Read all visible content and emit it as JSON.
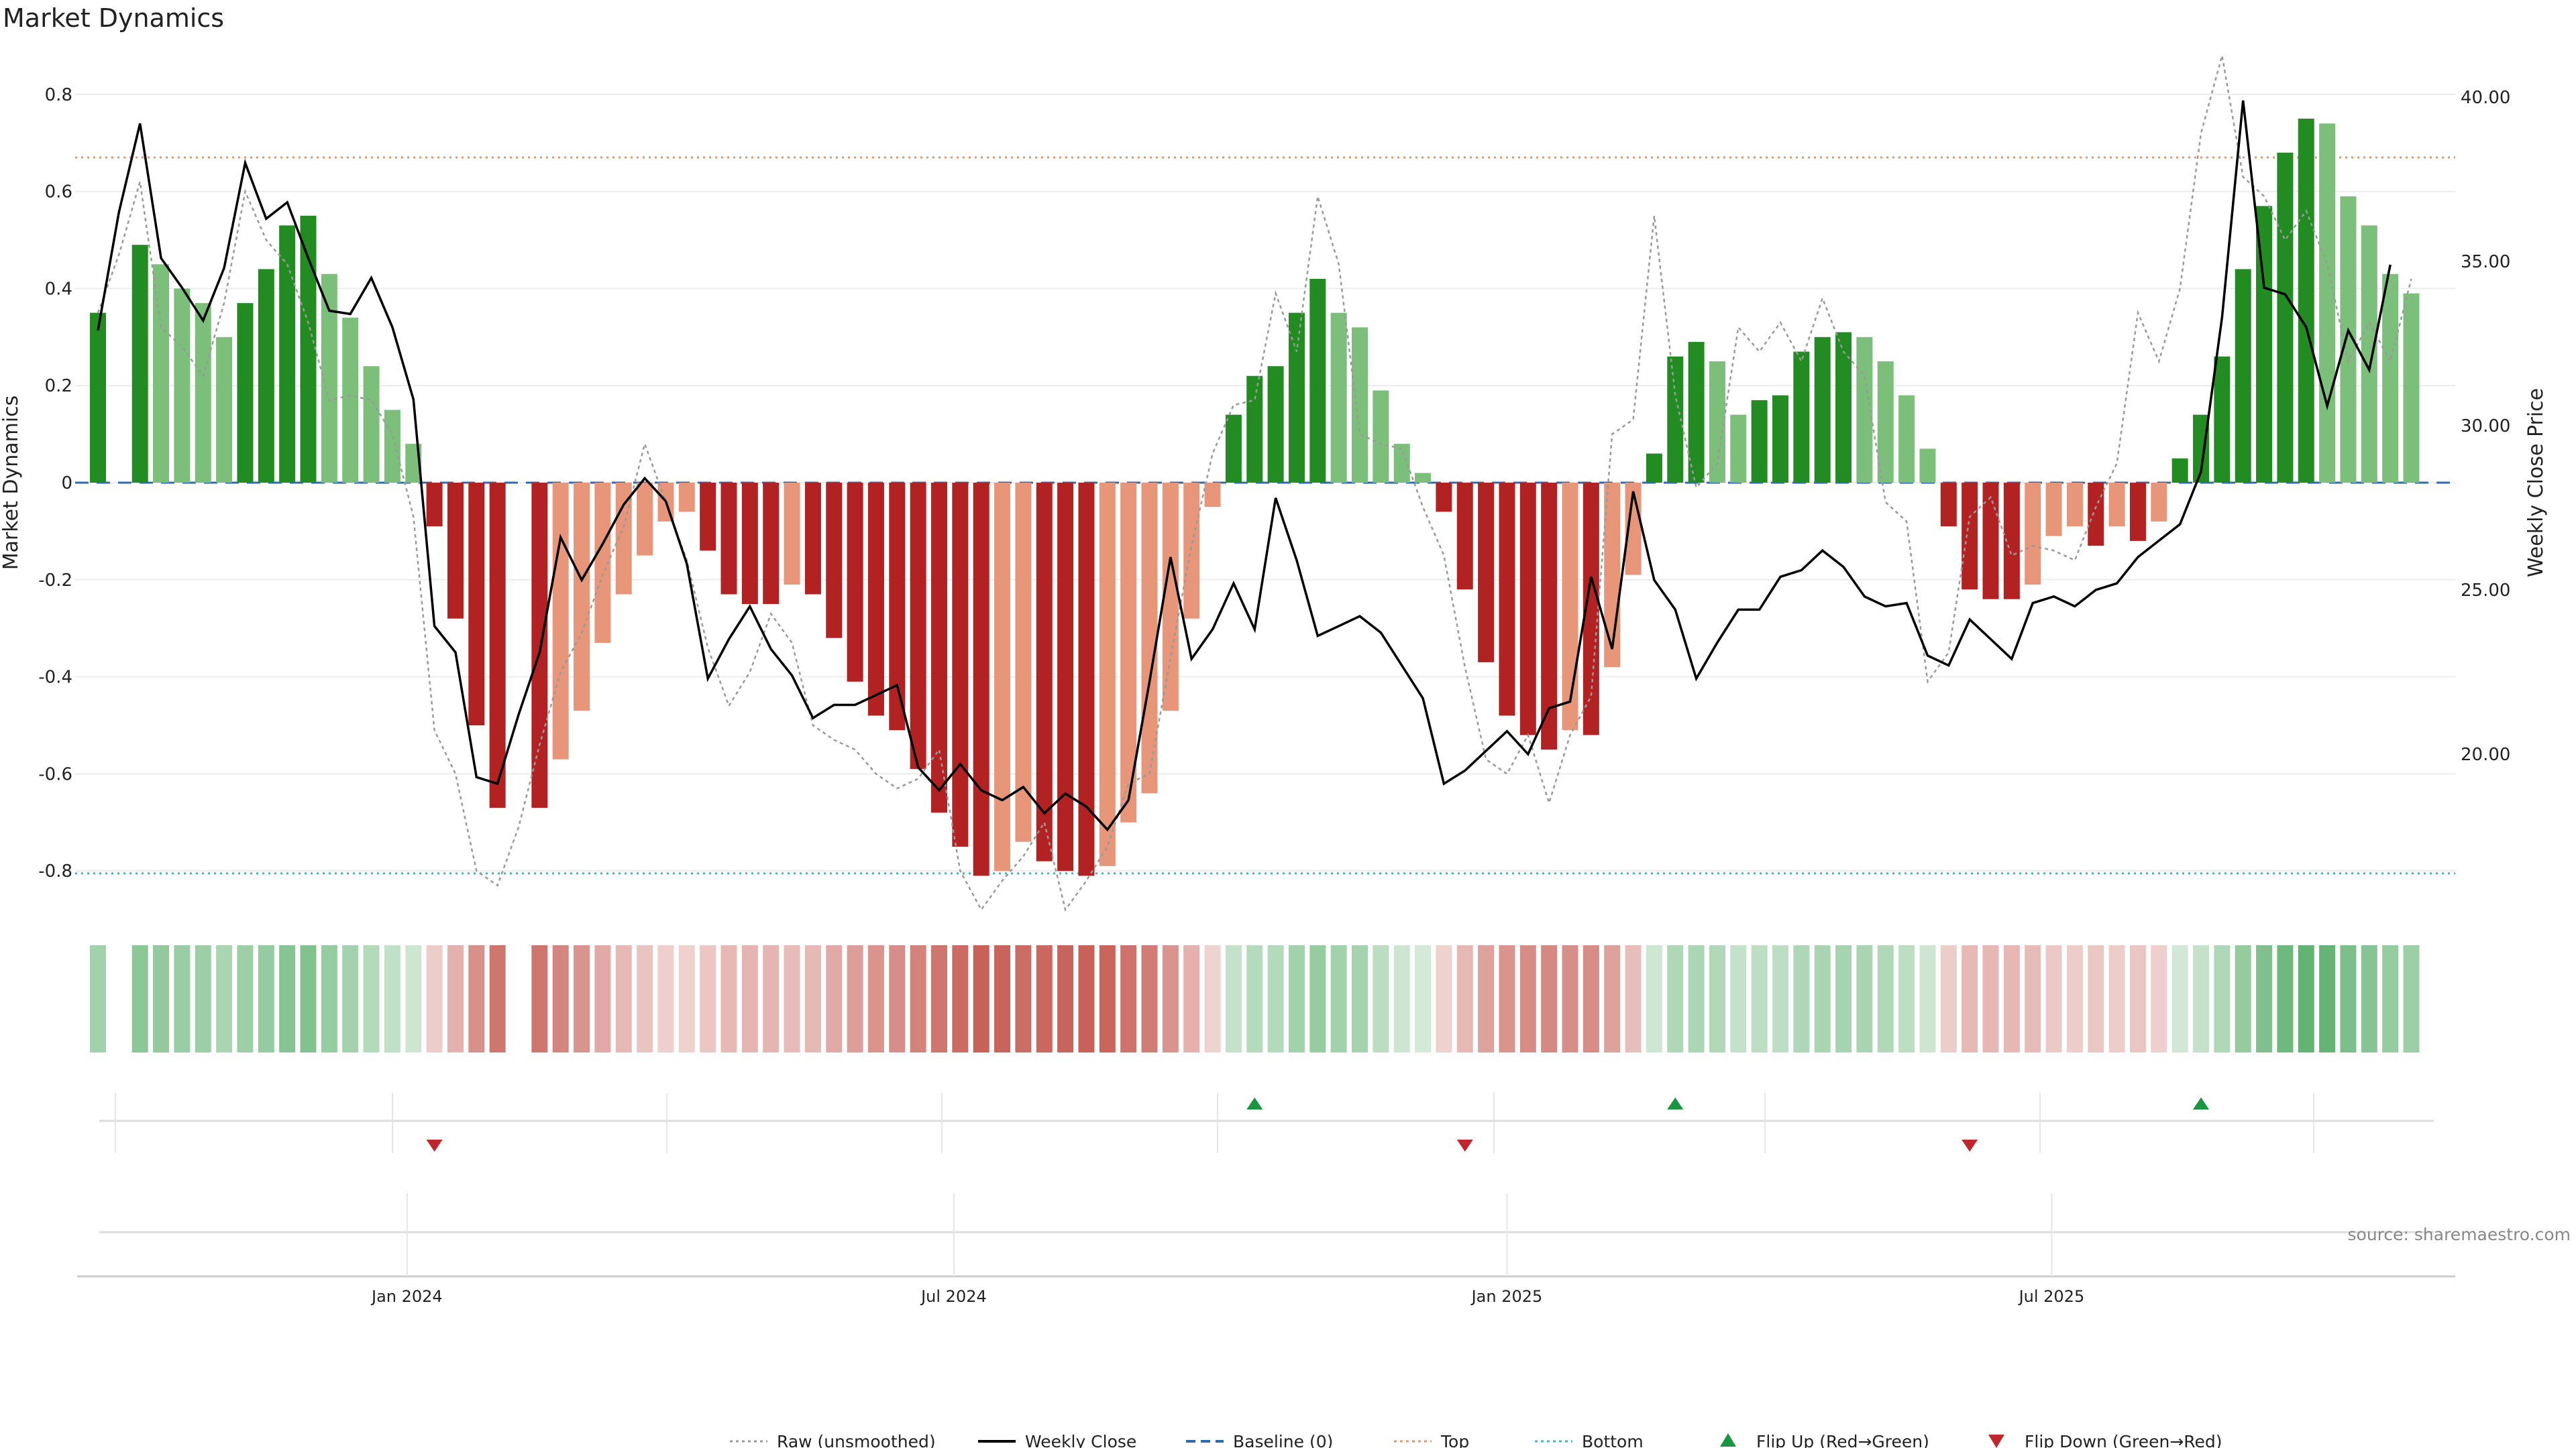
{
  "chart_data": {
    "type": "bar",
    "title": "Market Dynamics",
    "ylabel_left": "Market Dynamics",
    "ylabel_right": "Weekly Close Price",
    "ylim_left": [
      -0.88,
      0.9
    ],
    "ylim_right": [
      15.6,
      41.0
    ],
    "yticks_left": [
      "0.8",
      "0.6",
      "0.4",
      "0.2",
      "0",
      "-0.2",
      "-0.4",
      "-0.6",
      "-0.8"
    ],
    "yticks_right": [
      "40.00",
      "35.00",
      "30.00",
      "25.00",
      "20.00"
    ],
    "xticks": [
      "Jan 2024",
      "Jul 2024",
      "Jan 2025",
      "Jul 2025"
    ],
    "xtick_weeks": [
      14.7,
      40.7,
      67.0,
      92.9
    ],
    "top_threshold": 0.67,
    "bottom_threshold": -0.805,
    "baseline": 0,
    "n_weeks": 113,
    "dynamics": [
      0.35,
      null,
      0.49,
      0.45,
      0.4,
      0.37,
      0.3,
      0.37,
      0.44,
      0.53,
      0.55,
      0.43,
      0.34,
      0.24,
      0.15,
      0.08,
      -0.09,
      -0.28,
      -0.5,
      -0.67,
      null,
      -0.67,
      -0.57,
      -0.47,
      -0.33,
      -0.23,
      -0.15,
      -0.08,
      -0.06,
      -0.14,
      -0.23,
      -0.25,
      -0.25,
      -0.21,
      -0.23,
      -0.32,
      -0.41,
      -0.48,
      -0.51,
      -0.59,
      -0.68,
      -0.75,
      -0.81,
      -0.8,
      -0.74,
      -0.78,
      -0.8,
      -0.81,
      -0.79,
      -0.7,
      -0.64,
      -0.47,
      -0.28,
      -0.05,
      0.14,
      0.22,
      0.24,
      0.35,
      0.42,
      0.35,
      0.32,
      0.19,
      0.08,
      0.02,
      -0.06,
      -0.22,
      -0.37,
      -0.48,
      -0.52,
      -0.55,
      -0.51,
      -0.52,
      -0.38,
      -0.19,
      0.06,
      0.26,
      0.29,
      0.25,
      0.14,
      0.17,
      0.18,
      0.27,
      0.3,
      0.31,
      0.3,
      0.25,
      0.18,
      0.07,
      -0.09,
      -0.22,
      -0.24,
      -0.24,
      -0.21,
      -0.11,
      -0.09,
      -0.13,
      -0.09,
      -0.12,
      -0.08,
      0.05,
      0.14,
      0.26,
      0.44,
      0.57,
      0.68,
      0.75,
      0.74,
      0.59,
      0.53,
      0.43,
      0.39,
      null,
      null
    ],
    "raw": [
      0.35,
      0.47,
      0.62,
      0.32,
      0.28,
      0.22,
      0.37,
      0.6,
      0.5,
      0.45,
      0.33,
      0.17,
      0.18,
      0.17,
      0.1,
      -0.07,
      -0.51,
      -0.6,
      -0.8,
      -0.83,
      -0.71,
      -0.54,
      -0.39,
      -0.31,
      -0.19,
      -0.09,
      0.08,
      -0.04,
      -0.16,
      -0.34,
      -0.46,
      -0.39,
      -0.27,
      -0.33,
      -0.5,
      -0.53,
      -0.55,
      -0.6,
      -0.63,
      -0.61,
      -0.55,
      -0.8,
      -0.88,
      -0.82,
      -0.77,
      -0.7,
      -0.88,
      -0.82,
      -0.75,
      -0.62,
      -0.6,
      -0.36,
      -0.13,
      0.06,
      0.16,
      0.17,
      0.39,
      0.27,
      0.59,
      0.45,
      0.1,
      0.08,
      0.07,
      -0.05,
      -0.15,
      -0.38,
      -0.57,
      -0.6,
      -0.52,
      -0.66,
      -0.52,
      -0.44,
      0.1,
      0.13,
      0.55,
      0.18,
      -0.01,
      0.04,
      0.32,
      0.27,
      0.33,
      0.25,
      0.38,
      0.27,
      0.22,
      -0.04,
      -0.08,
      -0.41,
      -0.35,
      -0.07,
      -0.03,
      -0.15,
      -0.13,
      -0.14,
      -0.16,
      -0.05,
      0.04,
      0.35,
      0.25,
      0.4,
      0.72,
      0.88,
      0.63,
      0.59,
      0.5,
      0.56,
      0.45,
      0.25,
      0.33,
      0.25,
      0.42,
      null,
      null
    ],
    "close": [
      32.9,
      36.5,
      39.2,
      35.1,
      34.2,
      33.2,
      34.8,
      38.0,
      36.3,
      36.8,
      35.1,
      33.5,
      33.4,
      34.5,
      33.0,
      30.8,
      23.9,
      23.1,
      19.3,
      19.1,
      21.2,
      23.1,
      26.6,
      25.3,
      26.4,
      27.6,
      28.4,
      27.7,
      25.8,
      22.3,
      23.5,
      24.5,
      23.2,
      22.4,
      21.1,
      21.5,
      21.5,
      21.8,
      22.1,
      19.6,
      18.9,
      19.7,
      18.9,
      18.6,
      19.0,
      18.2,
      18.8,
      18.4,
      17.7,
      18.6,
      22.2,
      26.0,
      22.9,
      23.8,
      25.2,
      23.8,
      27.8,
      25.9,
      23.6,
      23.9,
      24.2,
      23.7,
      22.7,
      21.7,
      19.1,
      19.5,
      20.1,
      20.7,
      20.0,
      21.4,
      21.6,
      25.4,
      23.2,
      28.0,
      25.3,
      24.4,
      22.3,
      23.4,
      24.4,
      24.4,
      25.4,
      25.6,
      26.2,
      25.7,
      24.8,
      24.5,
      24.6,
      23.0,
      22.7,
      24.1,
      23.5,
      22.9,
      24.6,
      24.8,
      24.5,
      25.0,
      25.2,
      26.0,
      26.5,
      27.0,
      28.6,
      33.3,
      39.9,
      34.2,
      34.0,
      33.0,
      30.6,
      32.9,
      31.7,
      34.9,
      null,
      null
    ],
    "flips": [
      {
        "type": "down",
        "week": 16
      },
      {
        "type": "up",
        "week": 55
      },
      {
        "type": "down",
        "week": 65
      },
      {
        "type": "up",
        "week": 75
      },
      {
        "type": "down",
        "week": 89
      },
      {
        "type": "up",
        "week": 100
      }
    ],
    "legend": [
      {
        "label": "Raw (unsmoothed)",
        "style": "dotted",
        "color": "#999999"
      },
      {
        "label": "Weekly Close",
        "style": "solid",
        "color": "#000000"
      },
      {
        "label": "Baseline (0)",
        "style": "dashed",
        "color": "#2f6bb3"
      },
      {
        "label": "Top",
        "style": "dotted",
        "color": "#e8956d"
      },
      {
        "label": "Bottom",
        "style": "dotted",
        "color": "#38b8c9"
      },
      {
        "label": "Flip Up (Red→Green)",
        "style": "marker-up",
        "color": "#1a9641"
      },
      {
        "label": "Flip Down (Green→Red)",
        "style": "marker-down",
        "color": "#c0272d"
      }
    ],
    "legend_placement": "bottom-center",
    "source": "source: sharemaestro.com",
    "grid": true
  },
  "colors": {
    "strong_green": "#228b22",
    "light_green": "#7bbf7b",
    "strong_red": "#b22222",
    "light_red": "#e8967a"
  }
}
